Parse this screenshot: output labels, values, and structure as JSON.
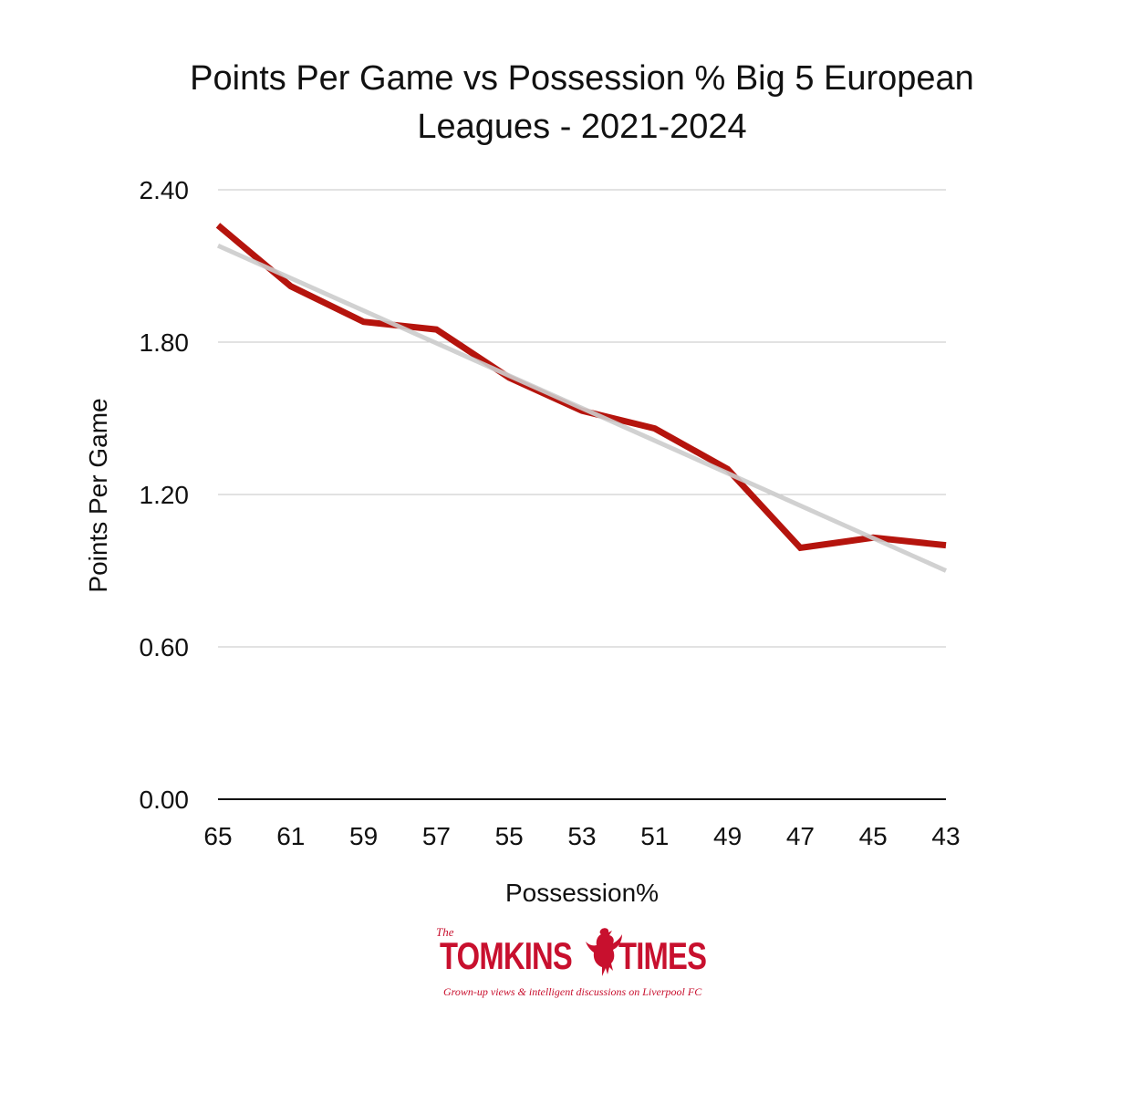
{
  "chart_data": {
    "type": "line",
    "title_line1": "Points Per Game vs Possession % Big 5 European",
    "title_line2": "Leagues - 2021-2024",
    "xlabel": "Possession%",
    "ylabel": "Points Per Game",
    "categories": [
      "65",
      "61",
      "59",
      "57",
      "55",
      "53",
      "51",
      "49",
      "47",
      "45",
      "43"
    ],
    "series": [
      {
        "values": [
          2.26,
          2.02,
          1.88,
          1.85,
          1.66,
          1.53,
          1.46,
          1.3,
          0.99,
          1.03,
          1.0
        ],
        "color": "#b5140d"
      }
    ],
    "trendline": {
      "start": 2.18,
      "end": 0.9,
      "color": "#cccccc"
    },
    "yticks": [
      "0.00",
      "0.60",
      "1.20",
      "1.80",
      "2.40"
    ],
    "ylim": [
      0,
      2.4
    ],
    "grid": true
  },
  "logo": {
    "the": "The",
    "word1": "TOMKINS",
    "word2": "TIMES",
    "tagline": "Grown-up views & intelligent discussions on Liverpool FC",
    "icon": "liverbird-icon",
    "color": "#c8102e"
  }
}
